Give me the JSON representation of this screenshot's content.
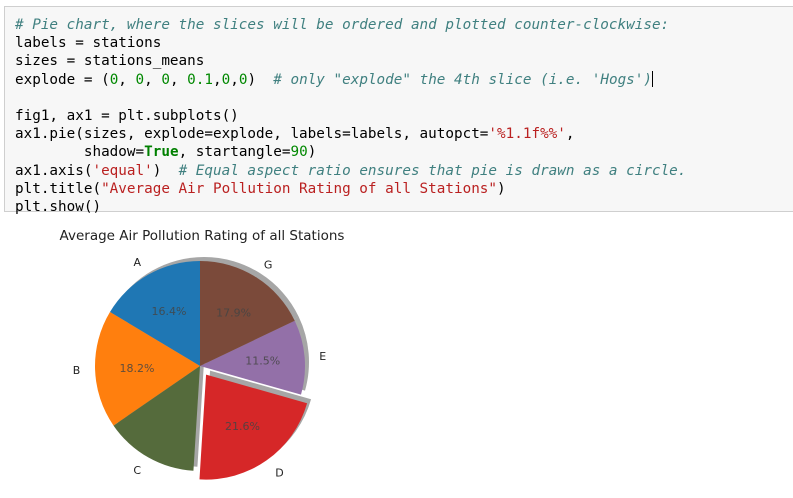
{
  "code_lines": [
    [
      {
        "t": "# Pie chart, where the slices will be ordered and plotted counter-clockwise:",
        "c": "comment"
      }
    ],
    [
      {
        "t": "labels = stations"
      }
    ],
    [
      {
        "t": "sizes = stations_means"
      }
    ],
    [
      {
        "t": "explode = ("
      },
      {
        "t": "0",
        "c": "num"
      },
      {
        "t": ", "
      },
      {
        "t": "0",
        "c": "num"
      },
      {
        "t": ", "
      },
      {
        "t": "0",
        "c": "num"
      },
      {
        "t": ", "
      },
      {
        "t": "0.1",
        "c": "num"
      },
      {
        "t": ","
      },
      {
        "t": "0",
        "c": "num"
      },
      {
        "t": ","
      },
      {
        "t": "0",
        "c": "num"
      },
      {
        "t": ")  "
      },
      {
        "t": "# only \"explode\" the 4th slice (i.e. 'Hogs')",
        "c": "comment"
      },
      {
        "t": "",
        "c": "cursor"
      }
    ],
    [
      {
        "t": ""
      }
    ],
    [
      {
        "t": "fig1, ax1 = plt.subplots()"
      }
    ],
    [
      {
        "t": "ax1.pie(sizes, explode=explode, labels=labels, autopct="
      },
      {
        "t": "'%1.1f%%'",
        "c": "str"
      },
      {
        "t": ","
      }
    ],
    [
      {
        "t": "        shadow="
      },
      {
        "t": "True",
        "c": "kw"
      },
      {
        "t": ", startangle="
      },
      {
        "t": "90",
        "c": "num"
      },
      {
        "t": ")"
      }
    ],
    [
      {
        "t": "ax1.axis("
      },
      {
        "t": "'equal'",
        "c": "str"
      },
      {
        "t": ")  "
      },
      {
        "t": "# Equal aspect ratio ensures that pie is drawn as a circle.",
        "c": "comment"
      }
    ],
    [
      {
        "t": "plt.title("
      },
      {
        "t": "\"Average Air Pollution Rating of all Stations\"",
        "c": "str"
      },
      {
        "t": ")"
      }
    ],
    [
      {
        "t": "plt.show()"
      }
    ]
  ],
  "chart_data": {
    "type": "pie",
    "title": "Average Air Pollution Rating of all Stations",
    "start_angle": 90,
    "direction": "counter-clockwise",
    "shadow": true,
    "slices": [
      {
        "label": "A",
        "value": 16.4,
        "pct_label": "16.4%",
        "color": "#1f77b4",
        "explode": 0
      },
      {
        "label": "B",
        "value": 18.2,
        "pct_label": "18.2%",
        "color": "#ff7f0e",
        "explode": 0
      },
      {
        "label": "C",
        "value": 14.4,
        "pct_label": "",
        "color": "#556b3c",
        "explode": 0
      },
      {
        "label": "D",
        "value": 21.6,
        "pct_label": "21.6%",
        "color": "#d62728",
        "explode": 0.1
      },
      {
        "label": "E",
        "value": 11.5,
        "pct_label": "11.5%",
        "color": "#9370a8",
        "explode": 0
      },
      {
        "label": "G",
        "value": 17.9,
        "pct_label": "17.9%",
        "color": "#7b4a3a",
        "explode": 0
      }
    ]
  }
}
